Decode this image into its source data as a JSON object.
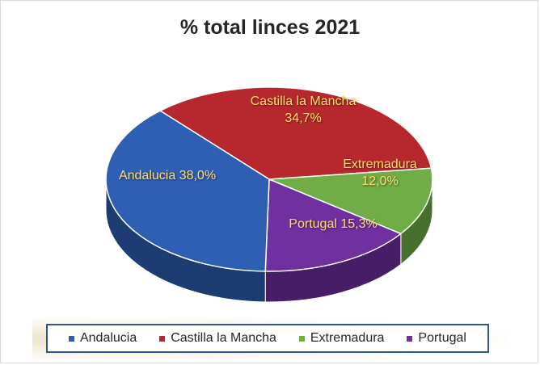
{
  "chart_data": {
    "type": "pie",
    "title": "% total linces 2021",
    "categories": [
      "Andalucia",
      "Castilla la Mancha",
      "Extremadura",
      "Portugal"
    ],
    "values": [
      38.0,
      34.7,
      12.0,
      15.3
    ],
    "data_labels": [
      "Andalucia 38,0%",
      "Castilla la Mancha\n34,7%",
      "Extremadura\n12,0%",
      "Portugal 15,3%"
    ],
    "colors": [
      "#2f5fb3",
      "#b7282e",
      "#70ad47",
      "#7030a0"
    ],
    "dark_colors": [
      "#1d3c72",
      "#7a1a1e",
      "#46702c",
      "#461d66"
    ],
    "legend": {
      "position": "bottom",
      "entries": [
        "Andalucia",
        "Castilla la Mancha",
        "Extremadura",
        "Portugal"
      ]
    },
    "style": "3d"
  }
}
